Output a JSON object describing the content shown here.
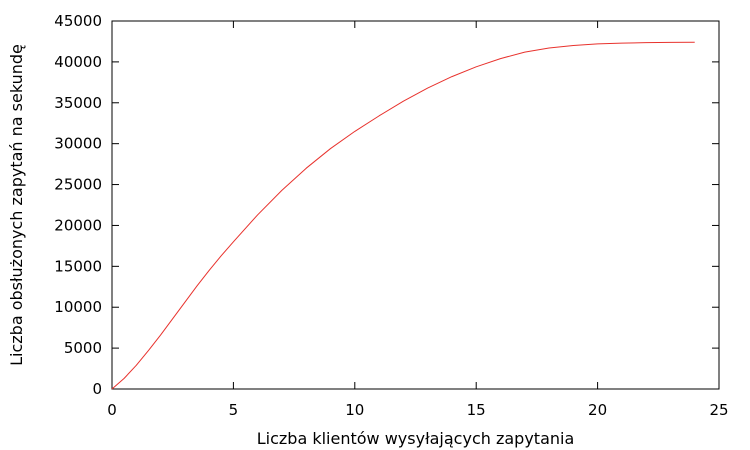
{
  "chart_data": {
    "type": "line",
    "title": "",
    "xlabel": "Liczba klientów wysyłających zapytania",
    "ylabel": "Liczba obsłużonych zapytań na sekundę",
    "xlim": [
      0,
      25
    ],
    "ylim": [
      0,
      45000
    ],
    "x_ticks": [
      0,
      5,
      10,
      15,
      20,
      25
    ],
    "y_ticks": [
      0,
      5000,
      10000,
      15000,
      20000,
      25000,
      30000,
      35000,
      40000,
      45000
    ],
    "grid": false,
    "legend": "none",
    "series": [
      {
        "color": "#e8322d",
        "x": [
          0,
          0.5,
          1,
          1.5,
          2,
          2.5,
          3,
          3.5,
          4,
          4.5,
          5,
          6,
          7,
          8,
          9,
          10,
          11,
          12,
          13,
          14,
          15,
          16,
          17,
          18,
          19,
          20,
          21,
          22,
          23,
          24
        ],
        "y": [
          0,
          1300,
          2900,
          4700,
          6600,
          8600,
          10600,
          12600,
          14500,
          16300,
          18000,
          21300,
          24300,
          27000,
          29400,
          31500,
          33400,
          35200,
          36800,
          38200,
          39400,
          40400,
          41200,
          41700,
          42000,
          42200,
          42300,
          42350,
          42380,
          42400
        ]
      }
    ]
  }
}
